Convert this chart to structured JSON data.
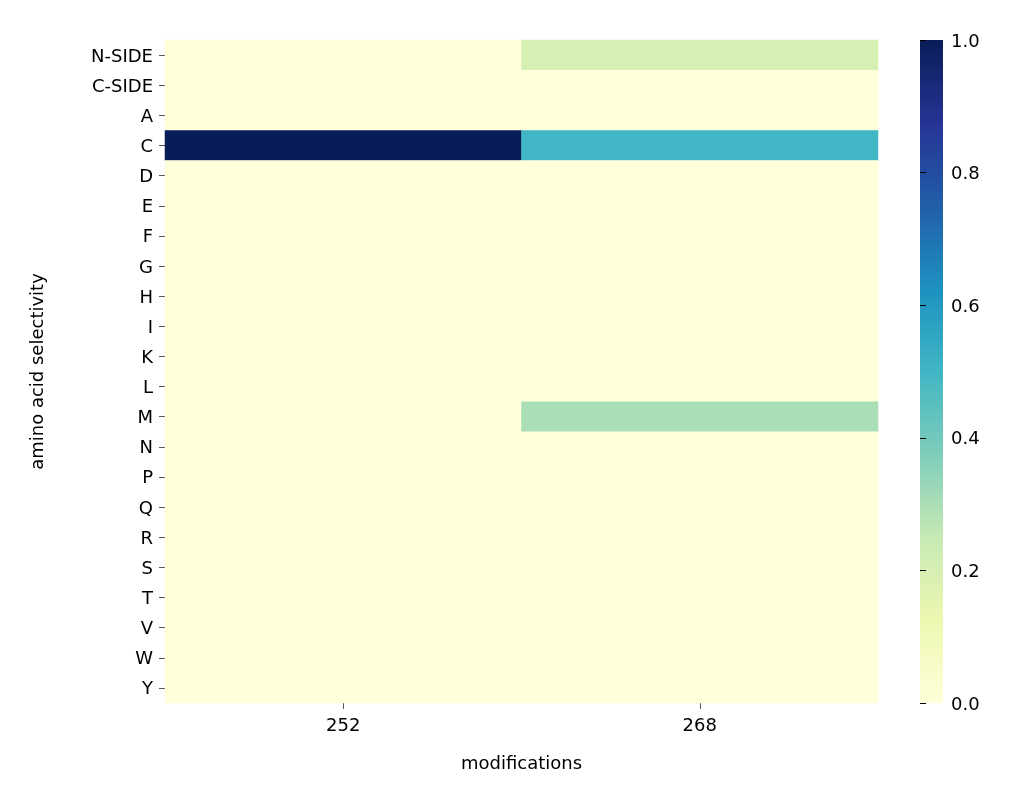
{
  "chart_data": {
    "type": "heatmap",
    "xlabel": "modifications",
    "ylabel": "amino acid selectivity",
    "categories": [
      "252",
      "268"
    ],
    "y_categories": [
      "N-SIDE",
      "C-SIDE",
      "A",
      "C",
      "D",
      "E",
      "F",
      "G",
      "H",
      "I",
      "K",
      "L",
      "M",
      "N",
      "P",
      "Q",
      "R",
      "S",
      "T",
      "V",
      "W",
      "Y"
    ],
    "cells": [
      [
        0,
        0.2
      ],
      [
        0,
        0
      ],
      [
        0,
        0
      ],
      [
        1,
        0.5
      ],
      [
        0,
        0
      ],
      [
        0,
        0
      ],
      [
        0,
        0
      ],
      [
        0,
        0
      ],
      [
        0,
        0
      ],
      [
        0,
        0
      ],
      [
        0,
        0
      ],
      [
        0,
        0
      ],
      [
        0,
        0.3
      ],
      [
        0,
        0
      ],
      [
        0,
        0
      ],
      [
        0,
        0
      ],
      [
        0,
        0
      ],
      [
        0,
        0
      ],
      [
        0,
        0
      ],
      [
        0,
        0
      ],
      [
        0,
        0
      ],
      [
        0,
        0
      ]
    ],
    "clim": [
      0,
      1
    ],
    "cticks": [
      {
        "value": 0,
        "label": "0.0"
      },
      {
        "value": 0.2,
        "label": "0.2"
      },
      {
        "value": 0.4,
        "label": "0.4"
      },
      {
        "value": 0.6,
        "label": "0.6"
      },
      {
        "value": 0.8,
        "label": "0.8"
      },
      {
        "value": 1,
        "label": "1.0"
      }
    ],
    "grid": false
  }
}
